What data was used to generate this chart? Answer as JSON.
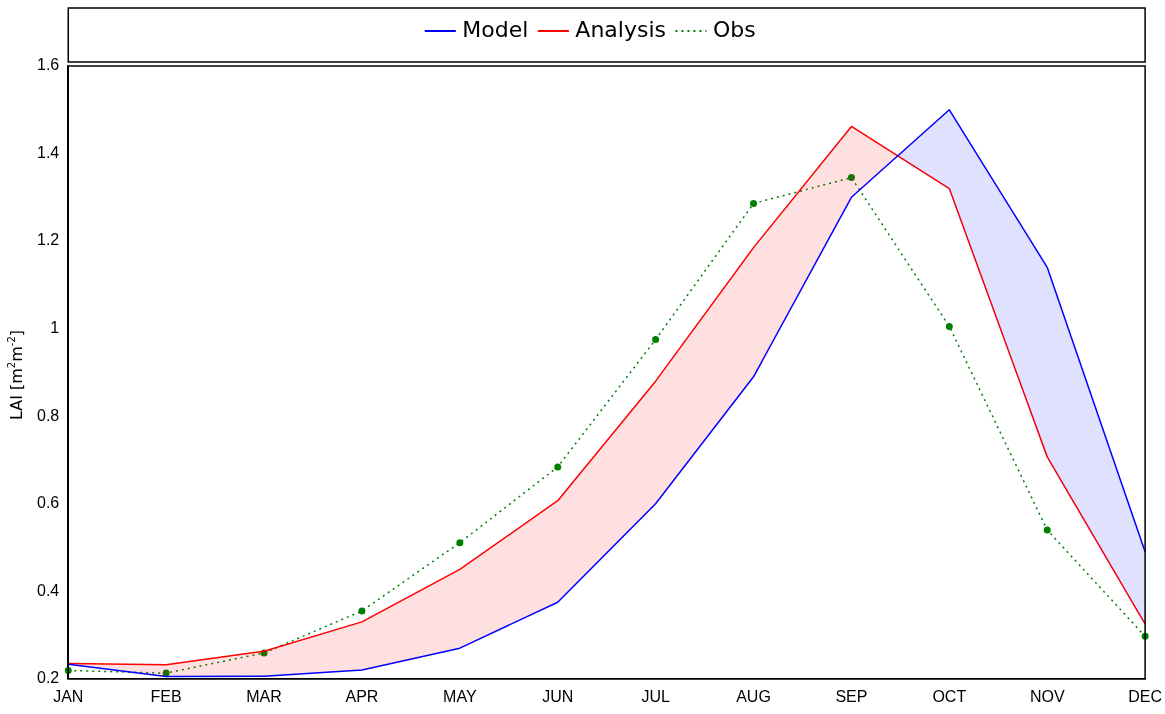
{
  "chart_data": {
    "type": "line",
    "ylabel": "LAI [m$^{2}$m$^{-2}$]",
    "categories": [
      "JAN",
      "FEB",
      "MAR",
      "APR",
      "MAY",
      "JUN",
      "JUL",
      "AUG",
      "SEP",
      "OCT",
      "NOV",
      "DEC"
    ],
    "series": [
      {
        "name": "Model",
        "color": "#0000ff",
        "values": [
          0.233,
          0.205,
          0.206,
          0.22,
          0.27,
          0.375,
          0.6,
          0.89,
          1.3,
          1.5,
          1.14,
          0.49
        ]
      },
      {
        "name": "Analysis",
        "color": "#ff0000",
        "values": [
          0.235,
          0.232,
          0.263,
          0.33,
          0.45,
          0.607,
          0.88,
          1.185,
          1.462,
          1.32,
          0.707,
          0.325
        ],
        "lower": [
          0.233,
          0.205,
          0.206,
          0.22,
          0.27,
          0.375,
          0.6,
          0.89,
          1.3,
          1.5,
          1.14,
          0.49
        ],
        "upper": [
          0.235,
          0.232,
          0.263,
          0.33,
          0.45,
          0.607,
          0.88,
          1.185,
          1.462,
          1.32,
          0.707,
          0.325
        ]
      },
      {
        "name": "Obs",
        "color": "#008000",
        "marker": "circle",
        "line_style": "dotted",
        "values": [
          0.219,
          0.213,
          0.259,
          0.355,
          0.511,
          0.684,
          0.975,
          1.286,
          1.345,
          1.005,
          0.54,
          0.297
        ]
      }
    ],
    "ylim": [
      0.2,
      1.6
    ],
    "yticks": [
      0.2,
      0.4,
      0.6,
      0.8,
      1,
      1.2,
      1.4,
      1.6
    ],
    "grid": false,
    "legend": "top",
    "marker": "none",
    "line_style": "solid"
  }
}
